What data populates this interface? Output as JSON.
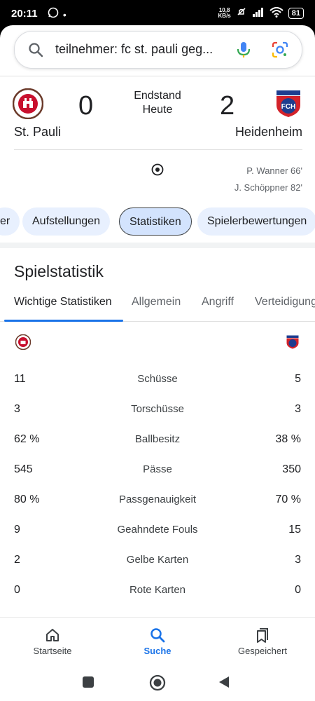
{
  "statusbar": {
    "time": "20:11",
    "net_speed_top": "10,8",
    "net_speed_unit": "KB/s",
    "battery": "81"
  },
  "search": {
    "query": "teilnehmer: fc st. pauli geg..."
  },
  "match": {
    "status": "Endstand",
    "date": "Heute",
    "home": {
      "name": "St. Pauli",
      "score": "0"
    },
    "away": {
      "name": "Heidenheim",
      "score": "2"
    },
    "goals": [
      "P. Wanner 66'",
      "J. Schöppner 82'"
    ]
  },
  "chips": [
    "er",
    "Aufstellungen",
    "Statistiken",
    "Spielerbewertungen"
  ],
  "section": {
    "title": "Spielstatistik",
    "tabs": [
      "Wichtige Statistiken",
      "Allgemein",
      "Angriff",
      "Verteidigung"
    ]
  },
  "stats": [
    {
      "home": "11",
      "label": "Schüsse",
      "away": "5"
    },
    {
      "home": "3",
      "label": "Torschüsse",
      "away": "3"
    },
    {
      "home": "62 %",
      "label": "Ballbesitz",
      "away": "38 %"
    },
    {
      "home": "545",
      "label": "Pässe",
      "away": "350"
    },
    {
      "home": "80 %",
      "label": "Passgenauigkeit",
      "away": "70 %"
    },
    {
      "home": "9",
      "label": "Geahndete Fouls",
      "away": "15"
    },
    {
      "home": "2",
      "label": "Gelbe Karten",
      "away": "3"
    },
    {
      "home": "0",
      "label": "Rote Karten",
      "away": "0"
    }
  ],
  "nav": {
    "items": [
      "Startseite",
      "Suche",
      "Gespeichert"
    ]
  },
  "colors": {
    "accent": "#1a73e8",
    "chip_bg": "#e8f0fe",
    "pauli_brown": "#6b3a2a",
    "pauli_red": "#c8102e",
    "fch_red": "#d3222a",
    "fch_blue": "#1e3d8f"
  }
}
